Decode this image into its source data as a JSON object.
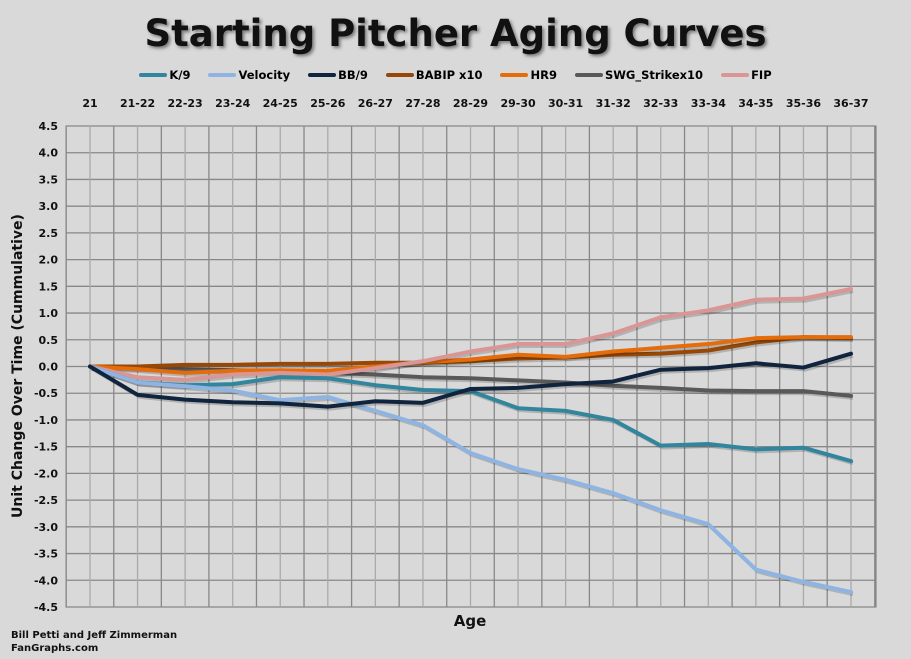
{
  "chart_data": {
    "type": "line",
    "title": "Starting Pitcher Aging Curves",
    "xlabel": "Age",
    "ylabel": "Unit Change Over Time (Cummulative)",
    "ylim": [
      -4.5,
      4.5
    ],
    "yticks": [
      "4.5",
      "4.0",
      "3.5",
      "3.0",
      "2.5",
      "2.0",
      "1.5",
      "1.0",
      "0.5",
      "0.0",
      "-0.5",
      "-1.0",
      "-1.5",
      "-2.0",
      "-2.5",
      "-3.0",
      "-3.5",
      "-4.0",
      "-4.5"
    ],
    "categories": [
      "21",
      "21-22",
      "22-23",
      "23-24",
      "24-25",
      "25-26",
      "26-27",
      "27-28",
      "28-29",
      "29-30",
      "30-31",
      "31-32",
      "32-33",
      "33-34",
      "34-35",
      "35-36",
      "36-37"
    ],
    "legend_position": "top",
    "grid": true,
    "series": [
      {
        "name": "K/9",
        "color": "#31859c",
        "values": [
          0,
          -0.3,
          -0.35,
          -0.33,
          -0.2,
          -0.22,
          -0.35,
          -0.44,
          -0.46,
          -0.78,
          -0.83,
          -1.0,
          -1.48,
          -1.45,
          -1.55,
          -1.52,
          -1.77
        ]
      },
      {
        "name": "Velocity",
        "color": "#8db4e2",
        "values": [
          0,
          -0.3,
          -0.37,
          -0.45,
          -0.63,
          -0.57,
          -0.83,
          -1.1,
          -1.62,
          -1.92,
          -2.12,
          -2.37,
          -2.69,
          -2.95,
          -3.8,
          -4.03,
          -4.22
        ]
      },
      {
        "name": "BB/9",
        "color": "#10243e",
        "values": [
          0,
          -0.53,
          -0.62,
          -0.67,
          -0.69,
          -0.75,
          -0.65,
          -0.68,
          -0.42,
          -0.4,
          -0.33,
          -0.28,
          -0.06,
          -0.03,
          0.06,
          -0.02,
          0.24
        ]
      },
      {
        "name": "BABIP x10",
        "color": "#974806",
        "values": [
          0,
          0,
          0.03,
          0.03,
          0.05,
          0.05,
          0.07,
          0.07,
          0.1,
          0.15,
          0.17,
          0.22,
          0.24,
          0.3,
          0.45,
          0.55,
          0.53
        ]
      },
      {
        "name": "HR9",
        "color": "#e46c0a",
        "values": [
          0,
          -0.05,
          -0.12,
          -0.08,
          -0.07,
          -0.08,
          0.0,
          0.08,
          0.13,
          0.22,
          0.18,
          0.28,
          0.35,
          0.42,
          0.53,
          0.55,
          0.55
        ]
      },
      {
        "name": "SWG_Strikex10",
        "color": "#595959",
        "values": [
          0,
          -0.03,
          -0.05,
          -0.07,
          -0.1,
          -0.12,
          -0.15,
          -0.2,
          -0.22,
          -0.26,
          -0.3,
          -0.36,
          -0.4,
          -0.45,
          -0.46,
          -0.46,
          -0.55
        ]
      },
      {
        "name": "FIP",
        "color": "#d99694",
        "values": [
          0,
          -0.2,
          -0.25,
          -0.15,
          -0.12,
          -0.15,
          -0.03,
          0.1,
          0.28,
          0.42,
          0.42,
          0.62,
          0.92,
          1.05,
          1.25,
          1.27,
          1.45
        ]
      }
    ]
  },
  "credit": {
    "line1": "Bill Petti and Jeff Zimmerman",
    "line2": "FanGraphs.com"
  }
}
